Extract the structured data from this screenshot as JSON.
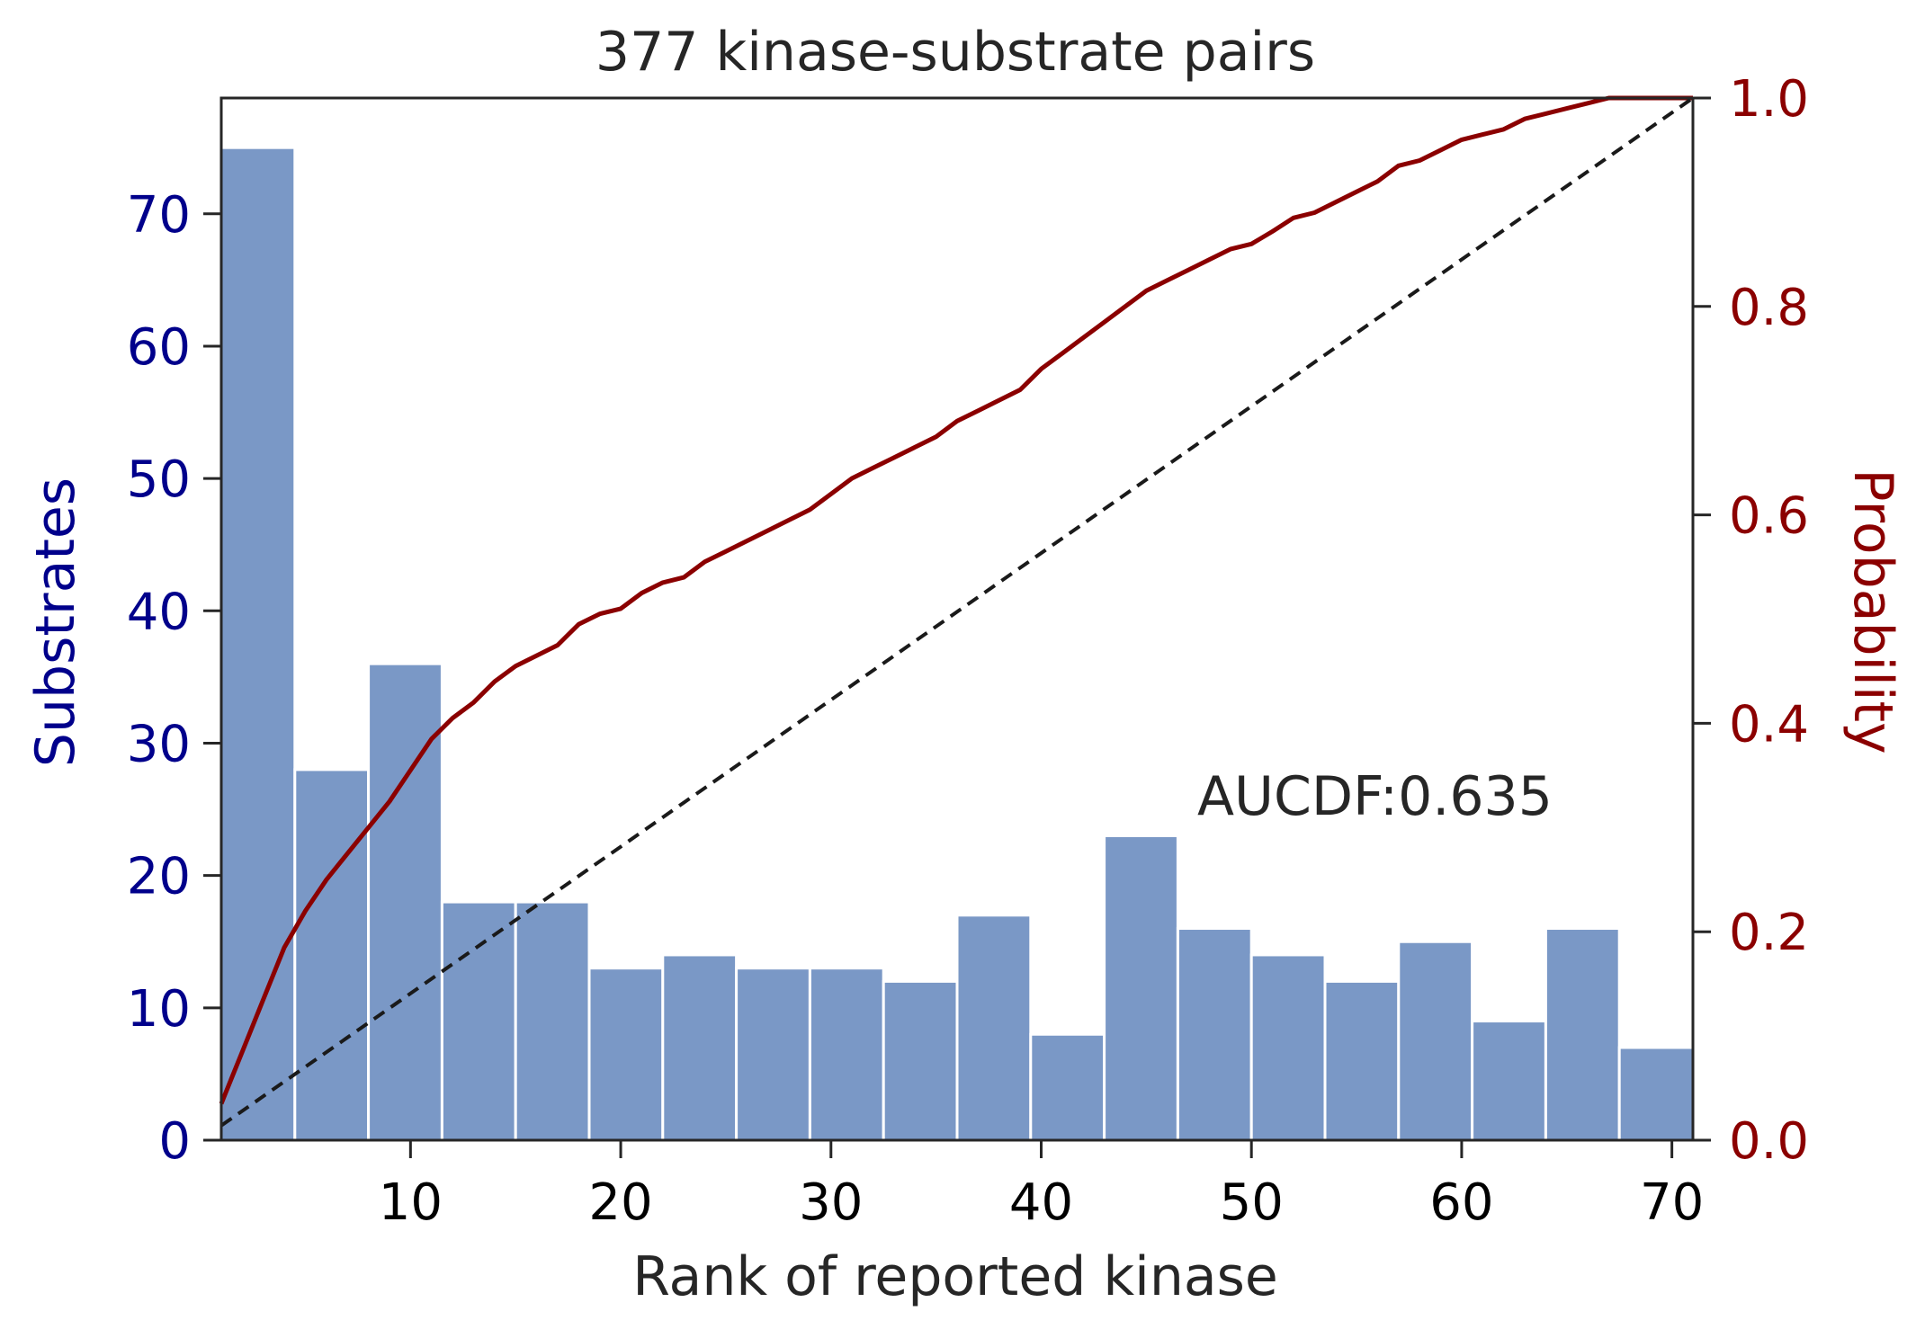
{
  "chart_data": {
    "type": "bar",
    "title": "377 kinase-substrate pairs",
    "xlabel": "Rank of reported kinase",
    "ylabel": "Substrates",
    "ylabel_right": "Probability",
    "annotation": "AUCDF:0.635",
    "xlim": [
      1,
      71
    ],
    "ylim": [
      0,
      78.75
    ],
    "ylim_right": [
      0,
      1.0
    ],
    "x_ticks": [
      10,
      20,
      30,
      40,
      50,
      60,
      70
    ],
    "y_ticks": [
      0,
      10,
      20,
      30,
      40,
      50,
      60,
      70
    ],
    "y_ticks_right": [
      "0.0",
      "0.2",
      "0.4",
      "0.6",
      "0.8",
      "1.0"
    ],
    "grid": false,
    "colors": {
      "bars": "#7a98c6",
      "cdf_line": "#8b0000",
      "diagonal": "#1a1a1a",
      "left_axis": "#00008b",
      "right_axis": "#8b0000",
      "frame": "#262626"
    },
    "histogram": {
      "name": "Substrates",
      "bin_edges": [
        1,
        4.5,
        8,
        11.5,
        15,
        18.5,
        22,
        25.5,
        29,
        32.5,
        36,
        39.5,
        43,
        46.5,
        50,
        53.5,
        57,
        60.5,
        64,
        67.5,
        71
      ],
      "values": [
        75,
        28,
        36,
        18,
        18,
        13,
        14,
        13,
        13,
        12,
        17,
        8,
        23,
        16,
        14,
        12,
        15,
        9,
        16,
        7
      ]
    },
    "series": [
      {
        "type": "line",
        "x": [
          1,
          2,
          3,
          4,
          5,
          6,
          7,
          8,
          9,
          10,
          11,
          12,
          13,
          14,
          15,
          16,
          17,
          18,
          19,
          20,
          21,
          22,
          23,
          24,
          25,
          26,
          27,
          28,
          29,
          30,
          31,
          32,
          33,
          34,
          35,
          36,
          37,
          38,
          39,
          40,
          41,
          42,
          43,
          44,
          45,
          46,
          47,
          48,
          49,
          50,
          51,
          52,
          53,
          54,
          55,
          56,
          57,
          58,
          59,
          60,
          61,
          62,
          63,
          64,
          65,
          66,
          67,
          68,
          69,
          70,
          71
        ],
        "y": [
          0.035,
          0.085,
          0.135,
          0.185,
          0.22,
          0.25,
          0.275,
          0.3,
          0.325,
          0.355,
          0.385,
          0.405,
          0.42,
          0.44,
          0.455,
          0.465,
          0.475,
          0.495,
          0.505,
          0.51,
          0.525,
          0.535,
          0.54,
          0.555,
          0.565,
          0.575,
          0.585,
          0.595,
          0.605,
          0.62,
          0.635,
          0.645,
          0.655,
          0.665,
          0.675,
          0.69,
          0.7,
          0.71,
          0.72,
          0.74,
          0.755,
          0.77,
          0.785,
          0.8,
          0.815,
          0.825,
          0.835,
          0.845,
          0.855,
          0.86,
          0.872,
          0.885,
          0.89,
          0.9,
          0.91,
          0.92,
          0.935,
          0.94,
          0.95,
          0.96,
          0.965,
          0.97,
          0.98,
          0.985,
          0.99,
          0.995,
          1.0,
          1.0,
          1.0,
          1.0,
          1.0
        ]
      },
      {
        "type": "dashed-line",
        "x": [
          1,
          71
        ],
        "y": [
          0.014,
          1.0
        ]
      }
    ]
  }
}
